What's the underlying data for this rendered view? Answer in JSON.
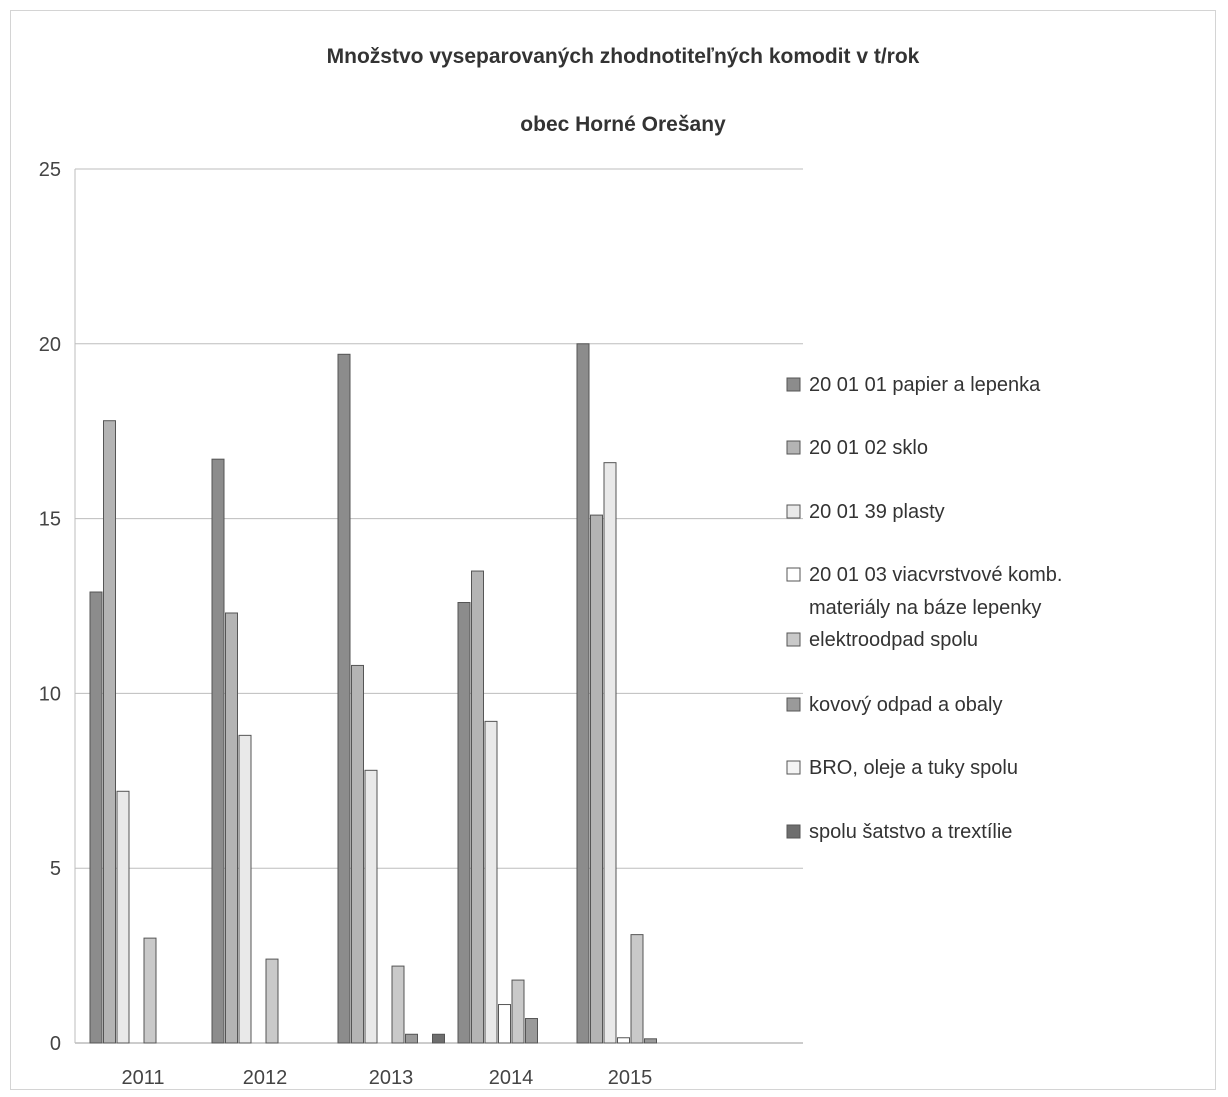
{
  "chart_data": {
    "type": "bar",
    "title": "Množstvo vyseparovaných  zhodnotiteľných komodit v t/rok",
    "subtitle": "obec Horné Orešany",
    "xlabel": "",
    "ylabel": "",
    "categories": [
      "2011",
      "2012",
      "2013",
      "2014",
      "2015"
    ],
    "ylim": [
      0,
      25
    ],
    "yticks": [
      "0",
      "5",
      "10",
      "15",
      "20",
      "25"
    ],
    "grid": true,
    "legend_position": "right",
    "series": [
      {
        "name": "20 01 01 papier a lepenka",
        "legend_lines": [
          "20 01 01 papier a lepenka"
        ],
        "color": "#8c8c8c",
        "values": [
          12.9,
          16.7,
          19.7,
          12.6,
          20.0
        ]
      },
      {
        "name": "20 01 02 sklo",
        "legend_lines": [
          "20 01 02 sklo"
        ],
        "color": "#b4b4b4",
        "values": [
          17.8,
          12.3,
          10.8,
          13.5,
          15.1
        ]
      },
      {
        "name": "20 01 39 plasty",
        "legend_lines": [
          "20 01 39 plasty"
        ],
        "color": "#e9e9e9",
        "values": [
          7.2,
          8.8,
          7.8,
          9.2,
          16.6
        ]
      },
      {
        "name": "20 01 03 viacvrstvové komb. materiály na báze lepenky",
        "legend_lines": [
          "20 01 03 viacvrstvové komb.",
          "materiály na báze lepenky"
        ],
        "color": "#ffffff",
        "values": [
          0,
          0,
          0,
          1.1,
          0.15
        ]
      },
      {
        "name": "elektroodpad spolu",
        "legend_lines": [
          "elektroodpad spolu"
        ],
        "color": "#c9c9c9",
        "values": [
          3.0,
          2.4,
          2.2,
          1.8,
          3.1
        ]
      },
      {
        "name": "kovový odpad a obaly",
        "legend_lines": [
          "kovový odpad a obaly"
        ],
        "color": "#9a9a9a",
        "values": [
          0,
          0,
          0.25,
          0.7,
          0.12
        ]
      },
      {
        "name": "BRO, oleje a tuky spolu",
        "legend_lines": [
          "BRO, oleje a tuky spolu"
        ],
        "color": "#f4f4f4",
        "values": [
          0,
          0,
          0,
          0,
          0
        ]
      },
      {
        "name": "spolu šatstvo a trextílie",
        "legend_lines": [
          "spolu šatstvo a trextílie"
        ],
        "color": "#6e6e6e",
        "values": [
          0,
          0,
          0.25,
          0,
          0
        ]
      }
    ]
  }
}
